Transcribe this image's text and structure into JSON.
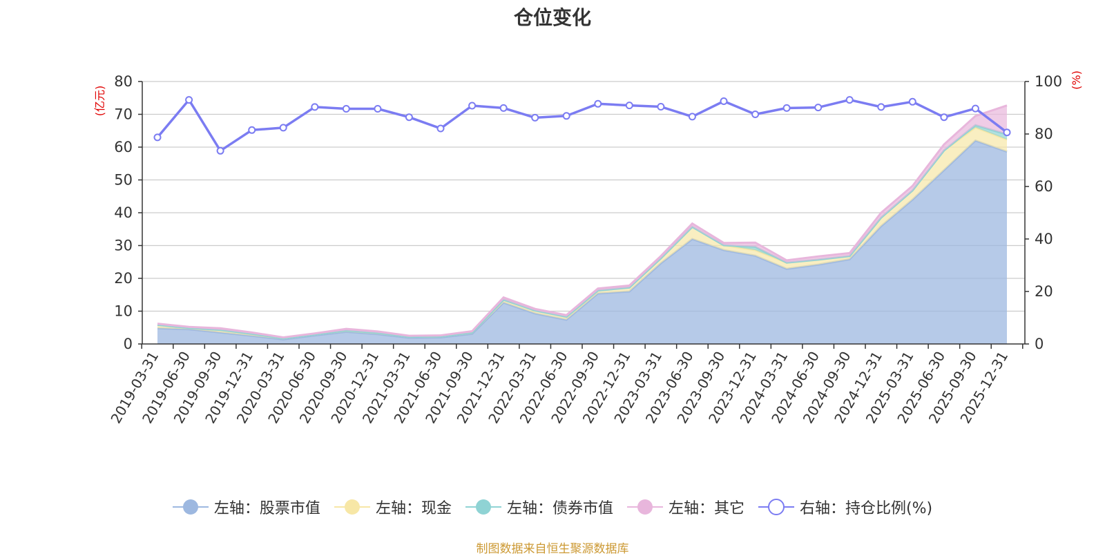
{
  "title": "仓位变化",
  "source_note": "制图数据来自恒生聚源数据库",
  "colors": {
    "stock": "#9db8e0",
    "cash": "#f7e7a6",
    "bond": "#8fd3d4",
    "other": "#e8b6dc",
    "ratio": "#7b7cf2",
    "axis_unit": "#e00000"
  },
  "chart_data": {
    "type": "area",
    "title": "仓位变化",
    "x": [
      "2019-03-31",
      "2019-06-30",
      "2019-09-30",
      "2019-12-31",
      "2020-03-31",
      "2020-06-30",
      "2020-09-30",
      "2020-12-31",
      "2021-03-31",
      "2021-06-30",
      "2021-09-30",
      "2021-12-31",
      "2022-03-31",
      "2022-06-30",
      "2022-09-30",
      "2022-12-31",
      "2023-03-31",
      "2023-06-30",
      "2023-09-30",
      "2023-12-31",
      "2024-03-31",
      "2024-06-30",
      "2024-09-30",
      "2024-12-31",
      "2025-03-31",
      "2025-06-30",
      "2025-09-30",
      "2025-12-31"
    ],
    "left_axis": {
      "unit": "(亿元)",
      "ylim": [
        0,
        80
      ],
      "ticks": [
        0,
        10,
        20,
        30,
        40,
        50,
        60,
        70,
        80
      ]
    },
    "right_axis": {
      "unit": "(%)",
      "ylim": [
        0,
        100
      ],
      "ticks": [
        0,
        20,
        40,
        60,
        80,
        100
      ]
    },
    "series": [
      {
        "name": "左轴：股票市值",
        "axis": "left",
        "kind": "stacked-area",
        "values": [
          4.8,
          4.5,
          3.5,
          2.5,
          1.4,
          2.6,
          3.7,
          3.0,
          1.9,
          2.0,
          3.1,
          12.6,
          9.3,
          7.4,
          15.4,
          16.0,
          24.6,
          32.0,
          28.6,
          26.9,
          22.9,
          24.2,
          25.8,
          35.9,
          44.0,
          53.0,
          62.0,
          58.6
        ]
      },
      {
        "name": "左轴：现金",
        "axis": "left",
        "kind": "stacked-area",
        "values": [
          1.0,
          0.4,
          0.8,
          0.6,
          0.3,
          0.3,
          0.4,
          0.4,
          0.3,
          0.3,
          0.4,
          0.9,
          0.9,
          0.9,
          0.9,
          1.2,
          1.5,
          3.7,
          1.5,
          1.7,
          1.9,
          1.5,
          1.0,
          2.6,
          2.8,
          6.0,
          4.0,
          3.7
        ]
      },
      {
        "name": "左轴：债券市值",
        "axis": "left",
        "kind": "stacked-area",
        "values": [
          0,
          0,
          0,
          0,
          0,
          0,
          0,
          0,
          0,
          0,
          0,
          0,
          0,
          0,
          0,
          0,
          0,
          0,
          0,
          1.0,
          0,
          0,
          0,
          0,
          0,
          0,
          0.7,
          1.6
        ]
      },
      {
        "name": "左轴：其它",
        "axis": "left",
        "kind": "stacked-area",
        "values": [
          0.4,
          0.3,
          0.5,
          0.4,
          0.3,
          0.3,
          0.5,
          0.4,
          0.3,
          0.3,
          0.4,
          0.7,
          0.5,
          0.5,
          0.6,
          0.6,
          0.7,
          1.0,
          0.7,
          1.3,
          0.7,
          1.0,
          0.9,
          1.5,
          1.4,
          1.8,
          2.8,
          8.8
        ]
      },
      {
        "name": "右轴：持仓比例(%)",
        "axis": "right",
        "kind": "line",
        "values": [
          78.7,
          93.0,
          73.6,
          81.5,
          82.4,
          90.3,
          89.6,
          89.6,
          86.4,
          82.1,
          90.8,
          89.9,
          86.2,
          86.9,
          91.5,
          90.9,
          90.4,
          86.6,
          92.5,
          87.5,
          89.9,
          90.1,
          93.0,
          90.3,
          92.3,
          86.4,
          89.7,
          80.6
        ]
      }
    ],
    "grid": true,
    "legend_position": "bottom"
  }
}
